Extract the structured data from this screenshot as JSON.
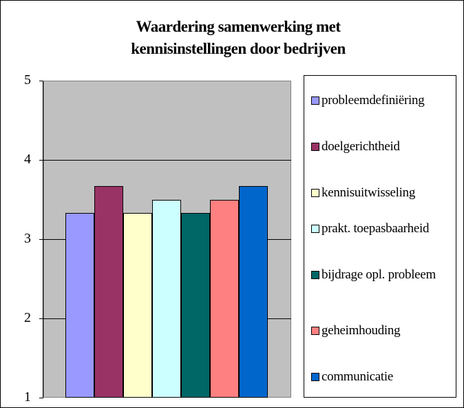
{
  "chart_data": {
    "type": "bar",
    "title": "Waardering samenwerking met kennisinstellingen door bedrijven",
    "ylim": [
      1,
      5
    ],
    "yticks": [
      1,
      2,
      3,
      4,
      5
    ],
    "grid": true,
    "legend": "right",
    "series": [
      {
        "name": "probleemdefiniëring",
        "color": "#9999ff",
        "values": [
          3.33
        ]
      },
      {
        "name": "doelgerichtheid",
        "color": "#993366",
        "values": [
          3.67
        ]
      },
      {
        "name": "kennisuitwisseling",
        "color": "#ffffcc",
        "values": [
          3.33
        ]
      },
      {
        "name": "prakt. toepasbaarheid",
        "color": "#ccffff",
        "values": [
          3.5
        ]
      },
      {
        "name": "bijdrage opl. probleem",
        "color": "#006666",
        "values": [
          3.33
        ]
      },
      {
        "name": "geheimhouding",
        "color": "#ff8080",
        "values": [
          3.5
        ]
      },
      {
        "name": "communicatie",
        "color": "#0066cc",
        "values": [
          3.67
        ]
      }
    ]
  }
}
